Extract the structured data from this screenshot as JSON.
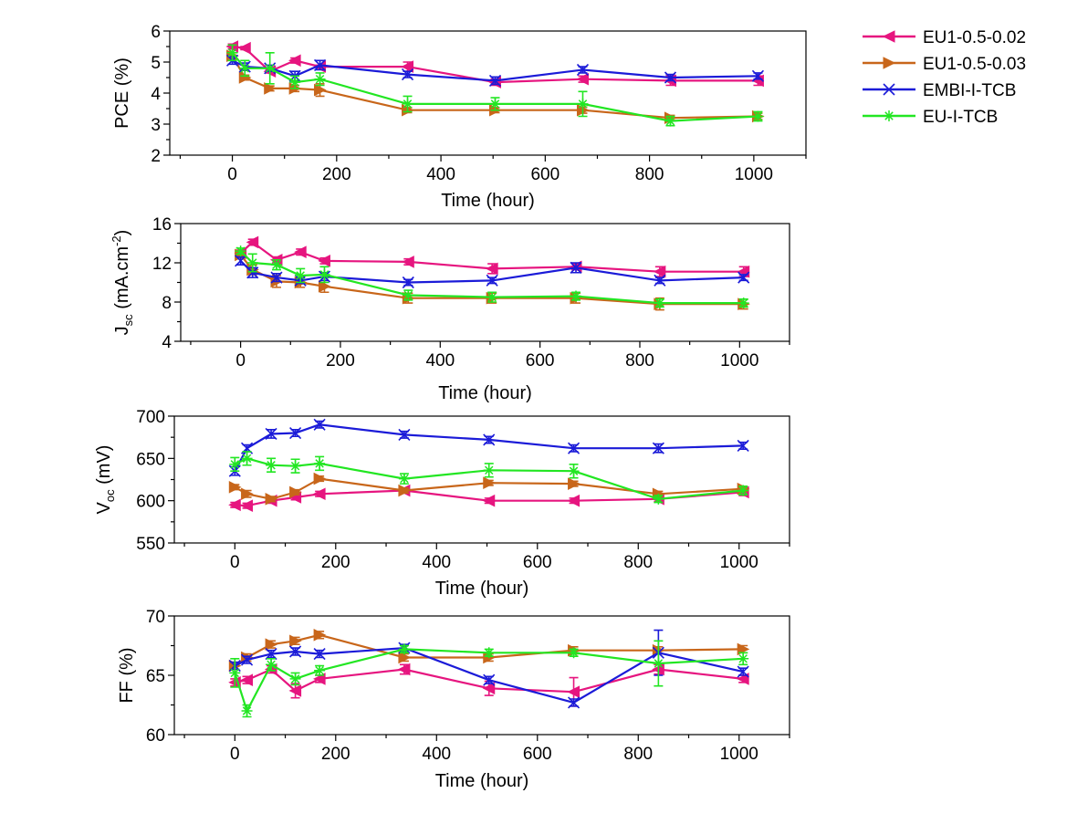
{
  "legend": [
    {
      "label": "EU1-0.5-0.02",
      "color": "#e6157f",
      "marker": "triangle-left"
    },
    {
      "label": "EU1-0.5-0.03",
      "color": "#c8661a",
      "marker": "triangle-right"
    },
    {
      "label": "EMBI-I-TCB",
      "color": "#1b1bd8",
      "marker": "x"
    },
    {
      "label": "EU-I-TCB",
      "color": "#22e622",
      "marker": "star"
    }
  ],
  "chart_data": [
    {
      "type": "line",
      "ylabel": "PCE (%)",
      "xlabel": "Time (hour)",
      "xlim": [
        -120,
        1100
      ],
      "ylim": [
        2,
        6
      ],
      "xticks": [
        0,
        200,
        400,
        600,
        800,
        1000
      ],
      "yticks": [
        2,
        3,
        4,
        5,
        6
      ],
      "series": [
        {
          "name": "EU1-0.5-0.02",
          "x": [
            0,
            24,
            72,
            120,
            168,
            336,
            504,
            672,
            840,
            1008
          ],
          "y": [
            5.5,
            5.45,
            4.7,
            5.05,
            4.85,
            4.85,
            4.35,
            4.45,
            4.4,
            4.4
          ],
          "err": [
            0.08,
            0.05,
            0.05,
            0.08,
            0.05,
            0.15,
            0.1,
            0.1,
            0.15,
            0.15
          ]
        },
        {
          "name": "EU1-0.5-0.03",
          "x": [
            0,
            24,
            72,
            120,
            168,
            336,
            504,
            672,
            840,
            1008
          ],
          "y": [
            5.2,
            4.5,
            4.15,
            4.15,
            4.1,
            3.45,
            3.45,
            3.45,
            3.2,
            3.25
          ],
          "err": [
            0.1,
            0.08,
            0.08,
            0.1,
            0.2,
            0.08,
            0.08,
            0.1,
            0.08,
            0.1
          ]
        },
        {
          "name": "EMBI-I-TCB",
          "x": [
            0,
            24,
            72,
            120,
            168,
            336,
            504,
            672,
            840,
            1008
          ],
          "y": [
            5.05,
            4.85,
            4.8,
            4.55,
            4.9,
            4.6,
            4.4,
            4.75,
            4.5,
            4.55
          ],
          "err": [
            0.12,
            0.12,
            0.1,
            0.15,
            0.15,
            0.1,
            0.12,
            0.1,
            0.1,
            0.1
          ]
        },
        {
          "name": "EU-I-TCB",
          "x": [
            0,
            24,
            72,
            120,
            168,
            336,
            504,
            672,
            840,
            1008
          ],
          "y": [
            5.3,
            4.8,
            4.8,
            4.35,
            4.45,
            3.65,
            3.65,
            3.65,
            3.1,
            3.25
          ],
          "err": [
            0.25,
            0.25,
            0.5,
            0.2,
            0.2,
            0.25,
            0.2,
            0.4,
            0.15,
            0.15
          ]
        }
      ]
    },
    {
      "type": "line",
      "ylabel": "J",
      "ylabel_sub": "sc",
      "ylabel_unit": " (mA.cm",
      "ylabel_sup": "-2",
      "ylabel_end": ")",
      "xlabel": "Time (hour)",
      "xlim": [
        -120,
        1100
      ],
      "ylim": [
        4,
        16
      ],
      "xticks": [
        0,
        200,
        400,
        600,
        800,
        1000
      ],
      "yticks": [
        4,
        8,
        12,
        16
      ],
      "series": [
        {
          "name": "EU1-0.5-0.02",
          "x": [
            0,
            24,
            72,
            120,
            168,
            336,
            504,
            672,
            840,
            1008
          ],
          "y": [
            13.0,
            14.1,
            12.3,
            13.1,
            12.2,
            12.1,
            11.4,
            11.6,
            11.1,
            11.1
          ],
          "err": [
            0.3,
            0.3,
            0.3,
            0.3,
            0.3,
            0.3,
            0.5,
            0.3,
            0.5,
            0.5
          ]
        },
        {
          "name": "EU1-0.5-0.03",
          "x": [
            0,
            24,
            72,
            120,
            168,
            336,
            504,
            672,
            840,
            1008
          ],
          "y": [
            12.8,
            11.3,
            10.1,
            10.0,
            9.6,
            8.4,
            8.4,
            8.4,
            7.8,
            7.8
          ],
          "err": [
            0.3,
            0.5,
            0.6,
            0.5,
            0.6,
            0.5,
            0.5,
            0.5,
            0.6,
            0.5
          ]
        },
        {
          "name": "EMBI-I-TCB",
          "x": [
            0,
            24,
            72,
            120,
            168,
            336,
            504,
            672,
            840,
            1008
          ],
          "y": [
            12.2,
            11.0,
            10.5,
            10.2,
            10.6,
            10.0,
            10.2,
            11.5,
            10.2,
            10.5
          ],
          "err": [
            0.4,
            0.5,
            0.4,
            0.3,
            0.4,
            0.3,
            0.3,
            0.5,
            0.3,
            0.3
          ]
        },
        {
          "name": "EU-I-TCB",
          "x": [
            0,
            24,
            72,
            120,
            168,
            336,
            504,
            672,
            840,
            1008
          ],
          "y": [
            13.2,
            12.0,
            11.8,
            10.7,
            10.8,
            8.7,
            8.5,
            8.6,
            7.9,
            7.9
          ],
          "err": [
            0.3,
            0.9,
            0.5,
            0.7,
            0.8,
            0.5,
            0.5,
            0.4,
            0.4,
            0.4
          ]
        }
      ]
    },
    {
      "type": "line",
      "ylabel": "V",
      "ylabel_sub": "oc",
      "ylabel_unit": " (mV)",
      "xlabel": "Time (hour)",
      "xlim": [
        -120,
        1100
      ],
      "ylim": [
        550,
        700
      ],
      "xticks": [
        0,
        200,
        400,
        600,
        800,
        1000
      ],
      "yticks": [
        550,
        600,
        650,
        700
      ],
      "series": [
        {
          "name": "EU1-0.5-0.02",
          "x": [
            0,
            24,
            72,
            120,
            168,
            336,
            504,
            672,
            840,
            1008
          ],
          "y": [
            595,
            594,
            600,
            604,
            608,
            612,
            600,
            600,
            602,
            610
          ],
          "err": [
            3,
            3,
            3,
            3,
            3,
            3,
            3,
            3,
            3,
            4
          ]
        },
        {
          "name": "EU1-0.5-0.03",
          "x": [
            0,
            24,
            72,
            120,
            168,
            336,
            504,
            672,
            840,
            1008
          ],
          "y": [
            616,
            608,
            602,
            610,
            626,
            612,
            621,
            620,
            608,
            614
          ],
          "err": [
            3,
            4,
            3,
            3,
            3,
            3,
            3,
            3,
            3,
            3
          ]
        },
        {
          "name": "EMBI-I-TCB",
          "x": [
            0,
            24,
            72,
            120,
            168,
            336,
            504,
            672,
            840,
            1008
          ],
          "y": [
            635,
            662,
            679,
            680,
            690,
            678,
            672,
            662,
            662,
            665
          ],
          "err": [
            5,
            4,
            5,
            4,
            4,
            4,
            4,
            4,
            5,
            4
          ]
        },
        {
          "name": "EU-I-TCB",
          "x": [
            0,
            24,
            72,
            120,
            168,
            336,
            504,
            672,
            840,
            1008
          ],
          "y": [
            643,
            650,
            642,
            641,
            644,
            626,
            636,
            635,
            602,
            612
          ],
          "err": [
            8,
            8,
            8,
            8,
            8,
            6,
            8,
            8,
            4,
            5
          ]
        }
      ]
    },
    {
      "type": "line",
      "ylabel": "FF (%)",
      "xlabel": "Time (hour)",
      "xlim": [
        -120,
        1100
      ],
      "ylim": [
        60,
        70
      ],
      "xticks": [
        0,
        200,
        400,
        600,
        800,
        1000
      ],
      "yticks": [
        60,
        65,
        70
      ],
      "series": [
        {
          "name": "EU1-0.5-0.02",
          "x": [
            0,
            24,
            72,
            120,
            168,
            336,
            504,
            672,
            840,
            1008
          ],
          "y": [
            64.4,
            64.6,
            65.5,
            63.7,
            64.7,
            65.5,
            63.9,
            63.6,
            65.5,
            64.7
          ],
          "err": [
            0.3,
            0.3,
            0.3,
            0.6,
            0.3,
            0.4,
            0.6,
            1.2,
            0.4,
            0.3
          ]
        },
        {
          "name": "EU1-0.5-0.03",
          "x": [
            0,
            24,
            72,
            120,
            168,
            336,
            504,
            672,
            840,
            1008
          ],
          "y": [
            65.8,
            66.5,
            67.6,
            67.9,
            68.4,
            66.5,
            66.5,
            67.1,
            67.1,
            67.2
          ],
          "err": [
            0.3,
            0.3,
            0.3,
            0.3,
            0.3,
            0.3,
            0.3,
            0.3,
            0.3,
            0.3
          ]
        },
        {
          "name": "EMBI-I-TCB",
          "x": [
            0,
            24,
            72,
            120,
            168,
            336,
            504,
            672,
            840,
            1008
          ],
          "y": [
            65.8,
            66.3,
            66.8,
            67.0,
            66.8,
            67.3,
            64.6,
            62.7,
            66.9,
            65.3
          ],
          "err": [
            0.3,
            0.3,
            0.3,
            0.3,
            0.3,
            0.3,
            0.3,
            0.3,
            1.9,
            0.3
          ]
        },
        {
          "name": "EU-I-TCB",
          "x": [
            0,
            24,
            72,
            120,
            168,
            336,
            504,
            672,
            840,
            1008
          ],
          "y": [
            65.2,
            62.0,
            65.9,
            64.7,
            65.4,
            67.2,
            66.9,
            66.9,
            66.0,
            66.4
          ],
          "err": [
            1.2,
            0.5,
            0.5,
            0.5,
            0.4,
            0.3,
            0.3,
            0.3,
            1.9,
            0.5
          ]
        }
      ]
    }
  ]
}
